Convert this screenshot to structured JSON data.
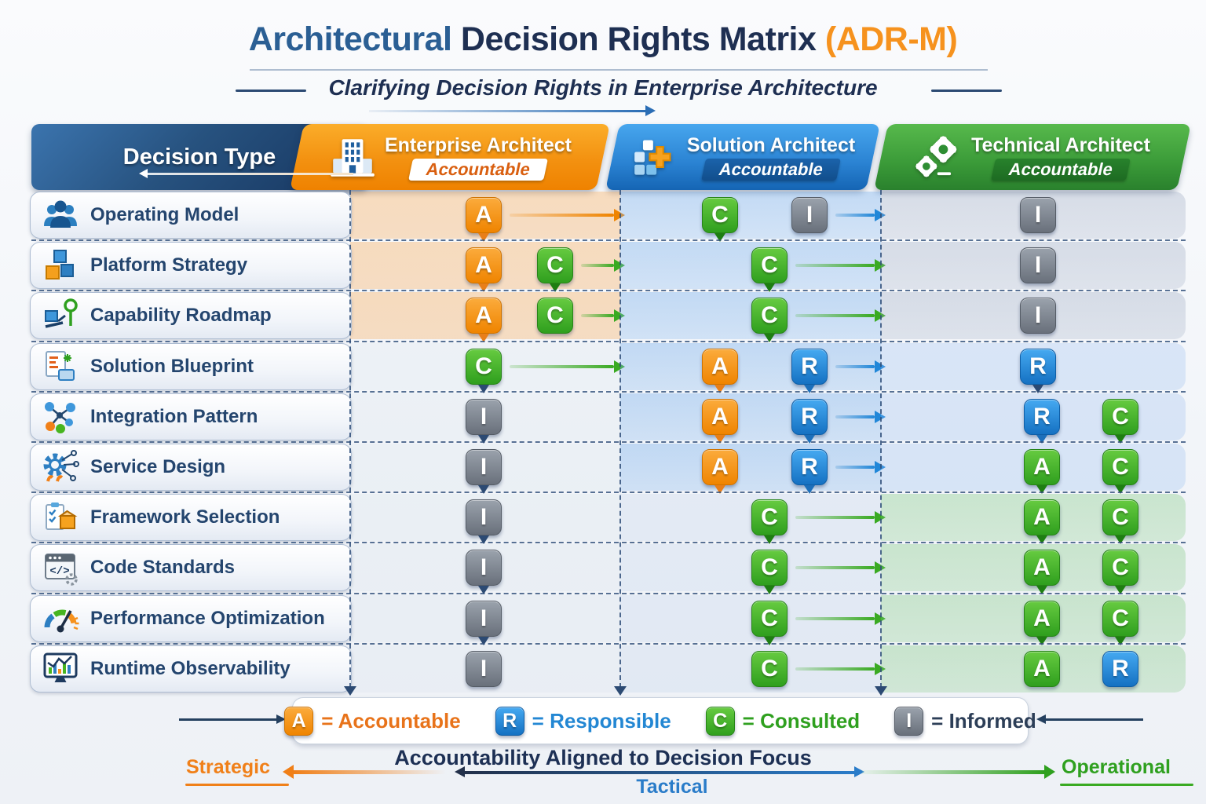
{
  "title": {
    "part1": "Architectural",
    "part2": " Decision Rights Matrix ",
    "part3": "(ADR-M)"
  },
  "subtitle": "Clarifying Decision Rights in Enterprise Architecture",
  "columns": [
    {
      "key": "decision",
      "label": "Decision Type"
    },
    {
      "key": "ea",
      "label": "Enterprise Architect",
      "badge": "Accountable",
      "color": "#F6921E",
      "icon": "building-icon"
    },
    {
      "key": "sa",
      "label": "Solution Architect",
      "badge": "Accountable",
      "color": "#2B8FD9",
      "icon": "blocks-icon"
    },
    {
      "key": "ta",
      "label": "Technical Architect",
      "badge": "Accountable",
      "color": "#3FAE29",
      "icon": "gears-icon"
    }
  ],
  "raci_colors": {
    "A": "#F6921E",
    "R": "#2B8FD9",
    "C": "#3FAE29",
    "I": "#7B828C"
  },
  "rows": [
    {
      "label": "Operating Model",
      "icon": "people-icon",
      "cells": {
        "ea": {
          "tint": "orange",
          "badges": [
            {
              "l": "A",
              "c": "orange",
              "down": "orange"
            }
          ],
          "flow": "orange"
        },
        "sa": {
          "tint": "blue",
          "badges": [
            {
              "l": "C",
              "c": "green",
              "down": "green"
            },
            {
              "l": "I",
              "c": "gray"
            }
          ],
          "flow": "blue"
        },
        "ta": {
          "tint": "gray",
          "badges": [
            {
              "l": "I",
              "c": "gray"
            }
          ]
        }
      }
    },
    {
      "label": "Platform Strategy",
      "icon": "cubes-icon",
      "cells": {
        "ea": {
          "tint": "orange",
          "badges": [
            {
              "l": "A",
              "c": "orange",
              "down": "orange"
            },
            {
              "l": "C",
              "c": "green",
              "down": "green"
            }
          ],
          "flow": "green"
        },
        "sa": {
          "tint": "blue",
          "badges": [
            {
              "l": "C",
              "c": "green",
              "down": "green"
            }
          ],
          "flow": "green"
        },
        "ta": {
          "tint": "gray",
          "badges": [
            {
              "l": "I",
              "c": "gray"
            }
          ]
        }
      }
    },
    {
      "label": "Capability Roadmap",
      "icon": "roadmap-icon",
      "cells": {
        "ea": {
          "tint": "orange",
          "badges": [
            {
              "l": "A",
              "c": "orange",
              "down": "orange"
            },
            {
              "l": "C",
              "c": "green"
            }
          ],
          "flow": "green"
        },
        "sa": {
          "tint": "blue",
          "badges": [
            {
              "l": "C",
              "c": "green",
              "down": "green"
            }
          ],
          "flow": "green"
        },
        "ta": {
          "tint": "gray",
          "badges": [
            {
              "l": "I",
              "c": "gray"
            }
          ]
        }
      }
    },
    {
      "label": "Solution Blueprint",
      "icon": "blueprint-icon",
      "cells": {
        "ea": {
          "tint": "plain",
          "badges": [
            {
              "l": "C",
              "c": "green",
              "down": "navy"
            }
          ],
          "flow": "green"
        },
        "sa": {
          "tint": "blue",
          "badges": [
            {
              "l": "A",
              "c": "orange",
              "down": "orange"
            },
            {
              "l": "R",
              "c": "blue",
              "down": "blue"
            }
          ],
          "flow": "blue"
        },
        "ta": {
          "tint": "lightblue",
          "badges": [
            {
              "l": "R",
              "c": "blue",
              "down": "navy"
            }
          ]
        }
      }
    },
    {
      "label": "Integration Pattern",
      "icon": "integration-icon",
      "cells": {
        "ea": {
          "tint": "plain",
          "badges": [
            {
              "l": "I",
              "c": "gray",
              "down": "navy"
            }
          ]
        },
        "sa": {
          "tint": "blue",
          "badges": [
            {
              "l": "A",
              "c": "orange",
              "down": "orange"
            },
            {
              "l": "R",
              "c": "blue",
              "down": "blue"
            }
          ],
          "flow": "blue"
        },
        "ta": {
          "tint": "lightblue",
          "badges": [
            {
              "l": "R",
              "c": "blue",
              "down": "blue"
            },
            {
              "l": "C",
              "c": "green",
              "down": "green"
            }
          ]
        }
      }
    },
    {
      "label": "Service Design",
      "icon": "service-icon",
      "cells": {
        "ea": {
          "tint": "plain",
          "badges": [
            {
              "l": "I",
              "c": "gray",
              "down": "navy"
            }
          ]
        },
        "sa": {
          "tint": "blue",
          "badges": [
            {
              "l": "A",
              "c": "orange",
              "down": "orange"
            },
            {
              "l": "R",
              "c": "blue",
              "down": "blue"
            }
          ],
          "flow": "blue"
        },
        "ta": {
          "tint": "lightblue",
          "badges": [
            {
              "l": "A",
              "c": "green",
              "down": "green"
            },
            {
              "l": "C",
              "c": "green",
              "down": "green"
            }
          ]
        }
      }
    },
    {
      "label": "Framework Selection",
      "icon": "framework-icon",
      "cells": {
        "ea": {
          "tint": "plain",
          "badges": [
            {
              "l": "I",
              "c": "gray",
              "down": "navy"
            }
          ]
        },
        "sa": {
          "tint": "pale",
          "badges": [
            {
              "l": "C",
              "c": "green",
              "down": "green"
            }
          ],
          "flow": "green"
        },
        "ta": {
          "tint": "green",
          "badges": [
            {
              "l": "A",
              "c": "green",
              "down": "green"
            },
            {
              "l": "C",
              "c": "green",
              "down": "green"
            }
          ]
        }
      }
    },
    {
      "label": "Code Standards",
      "icon": "code-icon",
      "cells": {
        "ea": {
          "tint": "plain",
          "badges": [
            {
              "l": "I",
              "c": "gray",
              "down": "navy"
            }
          ]
        },
        "sa": {
          "tint": "pale",
          "badges": [
            {
              "l": "C",
              "c": "green",
              "down": "green"
            }
          ],
          "flow": "green"
        },
        "ta": {
          "tint": "green",
          "badges": [
            {
              "l": "A",
              "c": "green",
              "down": "green"
            },
            {
              "l": "C",
              "c": "green",
              "down": "green"
            }
          ]
        }
      }
    },
    {
      "label": "Performance Optimization",
      "icon": "gauge-icon",
      "cells": {
        "ea": {
          "tint": "plain",
          "badges": [
            {
              "l": "I",
              "c": "gray",
              "down": "navy"
            }
          ]
        },
        "sa": {
          "tint": "pale",
          "badges": [
            {
              "l": "C",
              "c": "green",
              "down": "green"
            }
          ],
          "flow": "green"
        },
        "ta": {
          "tint": "green",
          "badges": [
            {
              "l": "A",
              "c": "green",
              "down": "green"
            },
            {
              "l": "C",
              "c": "green",
              "down": "green"
            }
          ]
        }
      }
    },
    {
      "label": "Runtime Observability",
      "icon": "observability-icon",
      "cells": {
        "ea": {
          "tint": "plain",
          "badges": [
            {
              "l": "I",
              "c": "gray"
            }
          ]
        },
        "sa": {
          "tint": "pale",
          "badges": [
            {
              "l": "C",
              "c": "green"
            }
          ],
          "flow": "green"
        },
        "ta": {
          "tint": "green",
          "badges": [
            {
              "l": "A",
              "c": "green"
            },
            {
              "l": "R",
              "c": "blue"
            }
          ]
        }
      }
    }
  ],
  "legend": [
    {
      "letter": "A",
      "label": "= Accountable",
      "color": "orange"
    },
    {
      "letter": "R",
      "label": "= Responsible",
      "color": "blue"
    },
    {
      "letter": "C",
      "label": "= Consulted",
      "color": "green"
    },
    {
      "letter": "I",
      "label": "= Informed",
      "color": "navy"
    }
  ],
  "footer": {
    "headline": "Accountability Aligned to Decision Focus",
    "left": "Strategic",
    "center": "Tactical",
    "right": "Operational"
  }
}
